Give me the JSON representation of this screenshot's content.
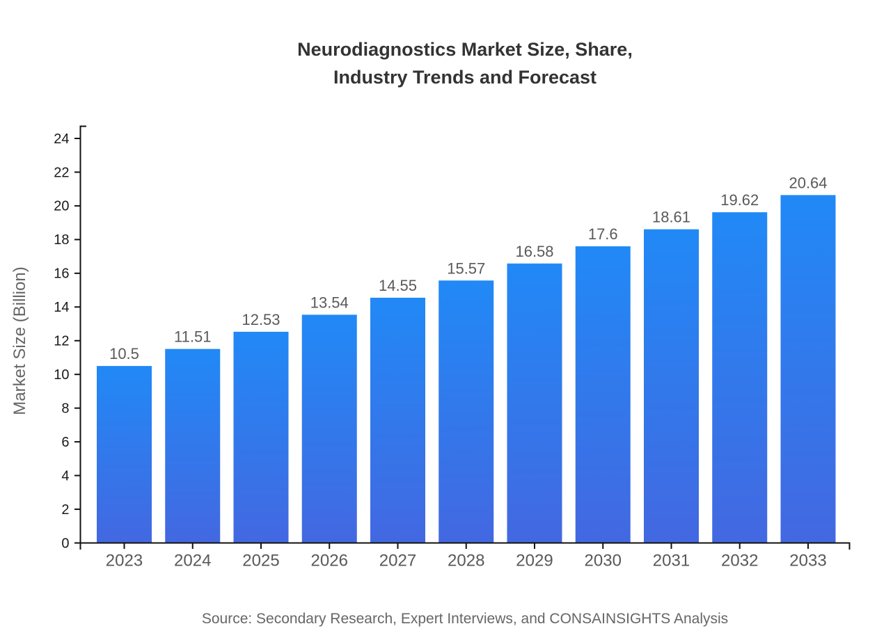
{
  "header": {
    "title_line1": "Neurodiagnostics Market Size, Share,",
    "title_line2": "Industry Trends and Forecast"
  },
  "footer": {
    "source": "Source: Secondary Research, Expert Interviews, and CONSAINSIGHTS Analysis"
  },
  "chart_data": {
    "type": "bar",
    "title": "Neurodiagnostics Market Size, Share, Industry Trends and Forecast",
    "categories": [
      "2023",
      "2024",
      "2025",
      "2026",
      "2027",
      "2028",
      "2029",
      "2030",
      "2031",
      "2032",
      "2033"
    ],
    "values": [
      10.5,
      11.51,
      12.53,
      13.54,
      14.55,
      15.57,
      16.58,
      17.6,
      18.61,
      19.62,
      20.64
    ],
    "xlabel": "",
    "ylabel": "Market Size (Billion)",
    "ylim": [
      0,
      24
    ],
    "ytick_step": 2,
    "grid": false,
    "legend": "none",
    "colors": {
      "bar_gradient_top": "#2189F6",
      "bar_gradient_bottom": "#4368E1",
      "axis_line": "#111111",
      "ytick_label": "#1a1a1a",
      "xtick_label": "#595959",
      "value_label": "#595959",
      "axis_title": "#666666",
      "title": "#333333",
      "source": "#666666"
    }
  }
}
